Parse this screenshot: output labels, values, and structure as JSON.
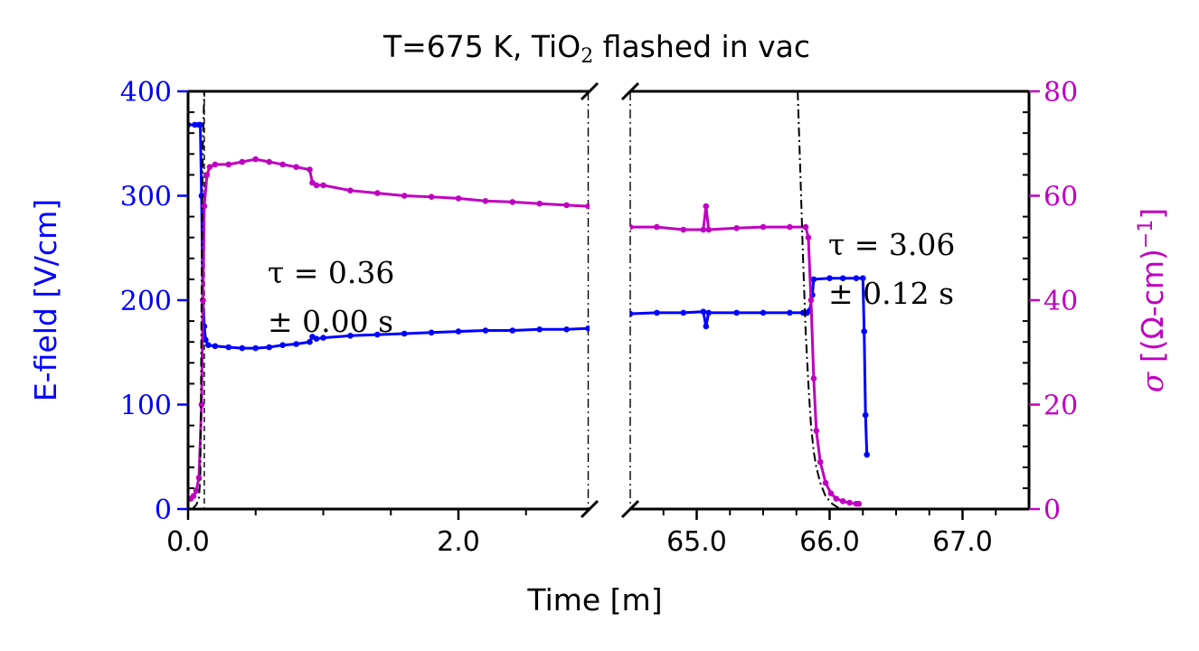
{
  "chart_data": {
    "type": "line",
    "title": "T=675 K, TiO",
    "title_sub": "2",
    "title_suffix": " flashed in vac",
    "xlabel": "Time [m]",
    "ylabel_left": "E-field [V/cm]",
    "ylabel_right_symbol": "σ",
    "ylabel_right": "[(Ω-cm)",
    "ylabel_right_sup": "−1",
    "ylabel_right_close": "]",
    "ylim_left": [
      0,
      400
    ],
    "ylim_right": [
      0,
      80
    ],
    "left_ticks": [
      "0",
      "100",
      "200",
      "300",
      "400"
    ],
    "right_ticks": [
      "0",
      "20",
      "40",
      "60",
      "80"
    ],
    "x_ticks_left_panel": [
      "0.0",
      "2.0"
    ],
    "x_ticks_right_panel": [
      "65.0",
      "66.0",
      "67.0"
    ],
    "broken_x_axis": true,
    "panels": [
      {
        "xlim": [
          0,
          2.97
        ]
      },
      {
        "xlim": [
          64.5,
          67.5
        ]
      }
    ],
    "colors": {
      "efield": "#0000ff",
      "sigma": "#c000c0",
      "fit": "#000000"
    },
    "annotations": [
      {
        "line1": "τ = 0.36",
        "line2": "± 0.00 s"
      },
      {
        "line1": "τ = 3.06",
        "line2": "± 0.12 s"
      }
    ],
    "series": [
      {
        "name": "E-field",
        "axis": "left",
        "segments": [
          [
            [
              0.0,
              368
            ],
            [
              0.05,
              368
            ],
            [
              0.08,
              368
            ],
            [
              0.09,
              368
            ],
            [
              0.1,
              300
            ],
            [
              0.11,
              200
            ],
            [
              0.12,
              175
            ],
            [
              0.13,
              162
            ],
            [
              0.15,
              157
            ],
            [
              0.2,
              156
            ],
            [
              0.3,
              155
            ],
            [
              0.4,
              154
            ],
            [
              0.5,
              154
            ],
            [
              0.6,
              155
            ],
            [
              0.7,
              157
            ],
            [
              0.8,
              158
            ],
            [
              0.9,
              160
            ],
            [
              0.92,
              165
            ],
            [
              0.95,
              163
            ],
            [
              1.0,
              164
            ],
            [
              1.2,
              166
            ],
            [
              1.4,
              167
            ],
            [
              1.6,
              168
            ],
            [
              1.8,
              169
            ],
            [
              2.0,
              170
            ],
            [
              2.2,
              171
            ],
            [
              2.4,
              171
            ],
            [
              2.6,
              172
            ],
            [
              2.8,
              172
            ],
            [
              2.96,
              173
            ]
          ],
          [
            [
              64.5,
              187
            ],
            [
              64.7,
              188
            ],
            [
              64.9,
              188
            ],
            [
              65.05,
              189
            ],
            [
              65.07,
              175
            ],
            [
              65.09,
              188
            ],
            [
              65.3,
              188
            ],
            [
              65.5,
              188
            ],
            [
              65.7,
              188
            ],
            [
              65.8,
              188
            ],
            [
              65.83,
              188
            ],
            [
              65.85,
              190
            ],
            [
              65.87,
              205
            ],
            [
              65.88,
              220
            ],
            [
              66.0,
              221
            ],
            [
              66.1,
              221
            ],
            [
              66.2,
              221
            ],
            [
              66.25,
              221
            ],
            [
              66.26,
              170
            ],
            [
              66.27,
              90
            ],
            [
              66.28,
              52
            ]
          ]
        ]
      },
      {
        "name": "σ",
        "axis": "right",
        "segments": [
          [
            [
              0.02,
              2
            ],
            [
              0.04,
              2.5
            ],
            [
              0.06,
              3.5
            ],
            [
              0.08,
              6
            ],
            [
              0.1,
              20
            ],
            [
              0.11,
              40
            ],
            [
              0.12,
              58
            ],
            [
              0.14,
              64
            ],
            [
              0.16,
              65.5
            ],
            [
              0.2,
              66
            ],
            [
              0.3,
              66
            ],
            [
              0.4,
              66.5
            ],
            [
              0.5,
              67
            ],
            [
              0.6,
              66.5
            ],
            [
              0.7,
              66
            ],
            [
              0.8,
              65.5
            ],
            [
              0.9,
              65
            ],
            [
              0.92,
              62.5
            ],
            [
              0.95,
              62
            ],
            [
              1.0,
              62
            ],
            [
              1.2,
              61
            ],
            [
              1.4,
              60.5
            ],
            [
              1.6,
              60
            ],
            [
              1.8,
              59.8
            ],
            [
              2.0,
              59.5
            ],
            [
              2.2,
              59
            ],
            [
              2.4,
              58.8
            ],
            [
              2.6,
              58.5
            ],
            [
              2.8,
              58.2
            ],
            [
              2.96,
              58
            ]
          ],
          [
            [
              64.5,
              54
            ],
            [
              64.7,
              54
            ],
            [
              64.9,
              53.5
            ],
            [
              65.05,
              53.5
            ],
            [
              65.07,
              58
            ],
            [
              65.09,
              53.5
            ],
            [
              65.3,
              53.8
            ],
            [
              65.5,
              54
            ],
            [
              65.7,
              54
            ],
            [
              65.82,
              54
            ],
            [
              65.84,
              52
            ],
            [
              65.86,
              40
            ],
            [
              65.88,
              25
            ],
            [
              65.9,
              15
            ],
            [
              65.93,
              9
            ],
            [
              65.97,
              5
            ],
            [
              66.01,
              3
            ],
            [
              66.05,
              2
            ],
            [
              66.1,
              1.5
            ],
            [
              66.15,
              1.2
            ],
            [
              66.2,
              1
            ],
            [
              66.22,
              1
            ]
          ]
        ]
      },
      {
        "name": "fit",
        "axis": "left",
        "style": "dashdot",
        "segments": [
          [
            [
              0.03,
              0
            ],
            [
              0.06,
              4
            ],
            [
              0.08,
              10
            ],
            [
              0.09,
              30
            ],
            [
              0.095,
              100
            ],
            [
              0.1,
              200
            ],
            [
              0.105,
              300
            ],
            [
              0.11,
              350
            ],
            [
              0.12,
              400
            ]
          ],
          [
            [
              65.76,
              400
            ],
            [
              65.78,
              320
            ],
            [
              65.8,
              240
            ],
            [
              65.82,
              170
            ],
            [
              65.84,
              120
            ],
            [
              65.86,
              80
            ],
            [
              65.88,
              55
            ],
            [
              65.9,
              40
            ],
            [
              65.93,
              25
            ],
            [
              65.97,
              12
            ],
            [
              66.02,
              5
            ],
            [
              66.08,
              0
            ]
          ]
        ]
      }
    ],
    "vlines": [
      {
        "panel": 0,
        "x": 0.12,
        "style": "dashed"
      },
      {
        "panel": 0,
        "x": 2.96,
        "style": "dashdot"
      },
      {
        "panel": 1,
        "x": 64.5,
        "style": "dashdot"
      }
    ]
  }
}
